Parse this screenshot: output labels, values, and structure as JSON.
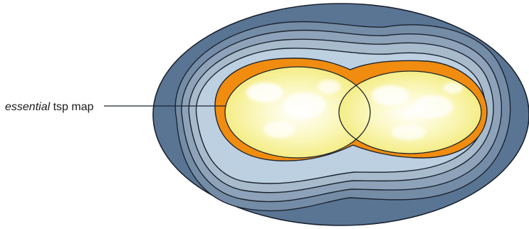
{
  "annotation": {
    "italic_part": "essential",
    "plain_part": " tsp map"
  },
  "colors": {
    "outer_region": "#5a7594",
    "band_1": "#758ca6",
    "band_2": "#8ea3ba",
    "band_3": "#a8bbcd",
    "band_4": "#bdd0e2",
    "orange_region": "#f08c10",
    "core_yellow": "#f7f3a2",
    "core_highlight": "#ffffff",
    "outline": "#1b2430"
  }
}
